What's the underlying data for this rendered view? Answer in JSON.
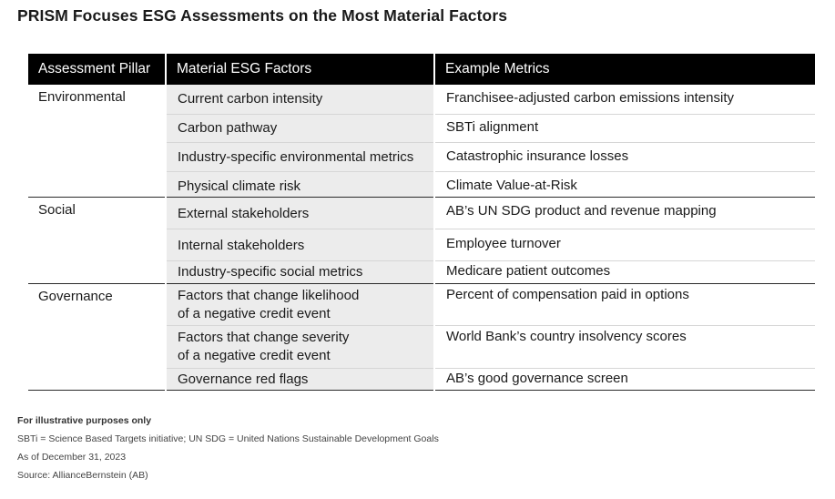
{
  "title": "PRISM Focuses ESG Assessments on the Most Material Factors",
  "table": {
    "headers": [
      "Assessment Pillar",
      "Material ESG Factors",
      "Example Metrics"
    ],
    "groups": [
      {
        "pillar": "Environmental",
        "rows": [
          {
            "factor": [
              "Current carbon intensity"
            ],
            "metric": "Franchisee-adjusted carbon emissions intensity"
          },
          {
            "factor": [
              "Carbon pathway"
            ],
            "metric": "SBTi alignment"
          },
          {
            "factor": [
              "Industry-specific environmental metrics"
            ],
            "metric": "Catastrophic insurance losses"
          },
          {
            "factor": [
              "Physical climate risk"
            ],
            "metric": "Climate Value-at-Risk"
          }
        ]
      },
      {
        "pillar": "Social",
        "rows": [
          {
            "factor": [
              "External stakeholders"
            ],
            "metric": "AB’s UN SDG product and revenue mapping"
          },
          {
            "factor": [
              "Internal stakeholders"
            ],
            "metric": "Employee turnover"
          },
          {
            "factor": [
              "Industry-specific social metrics"
            ],
            "metric": "Medicare patient outcomes"
          }
        ]
      },
      {
        "pillar": "Governance",
        "rows": [
          {
            "factor": [
              "Factors that change likelihood",
              "of a negative credit event"
            ],
            "metric": "Percent of compensation paid in options"
          },
          {
            "factor": [
              "Factors that change severity",
              "of a negative credit event"
            ],
            "metric": "World Bank’s country insolvency scores"
          },
          {
            "factor": [
              "Governance red flags"
            ],
            "metric": "AB’s good governance screen"
          }
        ]
      }
    ]
  },
  "notes": {
    "illustrative": "For illustrative purposes only",
    "abbreviations": "SBTi = Science Based Targets initiative; UN SDG = United Nations Sustainable Development Goals",
    "as_of": "As of December 31, 2023",
    "source": "Source: AllianceBernstein (AB)"
  }
}
